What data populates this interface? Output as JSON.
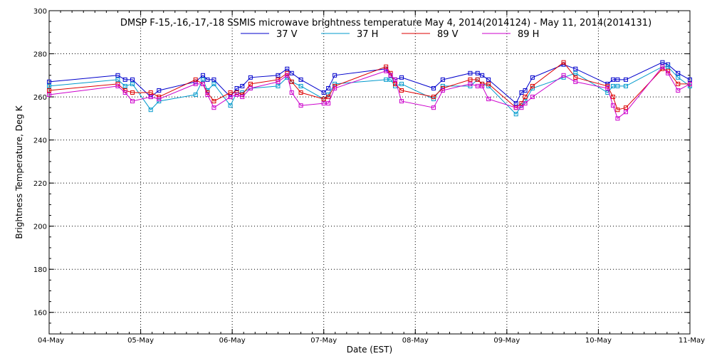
{
  "chart_data": {
    "type": "line",
    "title": "DMSP F-15,-16,-17,-18 SSMIS microwave brightness temperature May  4, 2014(2014124) - May 11, 2014(2014131)",
    "xlabel": "Date (EST)",
    "ylabel": "Brightness Temperature, Deg K",
    "ylim": [
      150,
      300
    ],
    "xlim": [
      0,
      7
    ],
    "y_ticks": [
      160,
      180,
      200,
      220,
      240,
      260,
      280,
      300
    ],
    "x_ticks": [
      {
        "pos": 0,
        "label": "04-May"
      },
      {
        "pos": 1,
        "label": "05-May"
      },
      {
        "pos": 2,
        "label": "06-May"
      },
      {
        "pos": 3,
        "label": "07-May"
      },
      {
        "pos": 4,
        "label": "08-May"
      },
      {
        "pos": 5,
        "label": "09-May"
      },
      {
        "pos": 6,
        "label": "10-May"
      },
      {
        "pos": 7,
        "label": "11-May"
      }
    ],
    "grid": true,
    "legend_position": "top-center",
    "series": [
      {
        "name": "37 V",
        "color": "#0000cc",
        "x": [
          0,
          0.75,
          0.83,
          0.91,
          1.11,
          1.2,
          1.6,
          1.68,
          1.73,
          1.8,
          1.98,
          2.05,
          2.11,
          2.2,
          2.5,
          2.6,
          2.65,
          2.75,
          3.0,
          3.05,
          3.12,
          3.68,
          3.73,
          3.78,
          3.85,
          4.2,
          4.3,
          4.6,
          4.68,
          4.73,
          4.8,
          5.1,
          5.16,
          5.2,
          5.28,
          5.62,
          5.75,
          6.1,
          6.16,
          6.21,
          6.3,
          6.7,
          6.76,
          6.87,
          7.0
        ],
        "y": [
          267,
          270,
          268,
          268,
          260,
          263,
          267,
          270,
          268,
          268,
          260,
          264,
          265,
          269,
          270,
          273,
          271,
          268,
          262,
          264,
          270,
          273,
          270,
          268,
          269,
          264,
          268,
          271,
          271,
          270,
          268,
          257,
          262,
          263,
          269,
          275,
          273,
          266,
          268,
          268,
          268,
          276,
          275,
          271,
          268
        ]
      },
      {
        "name": "37 H",
        "color": "#0099cc",
        "x": [
          0,
          0.75,
          0.83,
          0.91,
          1.11,
          1.2,
          1.6,
          1.68,
          1.73,
          1.8,
          1.98,
          2.05,
          2.11,
          2.2,
          2.5,
          2.6,
          2.65,
          2.75,
          3.0,
          3.05,
          3.12,
          3.68,
          3.73,
          3.78,
          3.85,
          4.2,
          4.3,
          4.6,
          4.68,
          4.73,
          4.8,
          5.1,
          5.16,
          5.2,
          5.28,
          5.62,
          5.75,
          6.1,
          6.16,
          6.21,
          6.3,
          6.7,
          6.76,
          6.87,
          7.0
        ],
        "y": [
          265,
          268,
          265,
          266,
          254,
          258,
          261,
          268,
          263,
          266,
          256,
          262,
          262,
          264,
          265,
          269,
          267,
          265,
          259,
          261,
          266,
          268,
          268,
          265,
          266,
          259,
          265,
          265,
          268,
          266,
          265,
          252,
          256,
          258,
          264,
          269,
          271,
          262,
          265,
          265,
          265,
          274,
          274,
          269,
          265
        ]
      },
      {
        "name": "89 V",
        "color": "#dd0000",
        "x": [
          0,
          0.75,
          0.83,
          0.91,
          1.11,
          1.2,
          1.6,
          1.68,
          1.73,
          1.8,
          1.98,
          2.05,
          2.11,
          2.2,
          2.5,
          2.6,
          2.65,
          2.75,
          3.0,
          3.05,
          3.12,
          3.68,
          3.73,
          3.78,
          3.85,
          4.2,
          4.3,
          4.6,
          4.68,
          4.73,
          4.8,
          5.1,
          5.16,
          5.2,
          5.28,
          5.62,
          5.75,
          6.1,
          6.16,
          6.21,
          6.3,
          6.7,
          6.76,
          6.87,
          7.0
        ],
        "y": [
          263,
          266,
          263,
          262,
          262,
          260,
          268,
          266,
          262,
          258,
          262,
          262,
          261,
          266,
          268,
          271,
          267,
          262,
          259,
          260,
          265,
          274,
          271,
          266,
          263,
          260,
          264,
          268,
          268,
          266,
          266,
          255,
          257,
          260,
          265,
          276,
          269,
          265,
          260,
          254,
          255,
          273,
          272,
          266,
          266
        ]
      },
      {
        "name": "89 H",
        "color": "#cc00cc",
        "x": [
          0,
          0.75,
          0.83,
          0.91,
          1.11,
          1.2,
          1.6,
          1.68,
          1.73,
          1.8,
          1.98,
          2.05,
          2.11,
          2.2,
          2.5,
          2.6,
          2.65,
          2.75,
          3.0,
          3.05,
          3.12,
          3.68,
          3.73,
          3.78,
          3.85,
          4.2,
          4.3,
          4.6,
          4.68,
          4.73,
          4.8,
          5.1,
          5.16,
          5.2,
          5.28,
          5.62,
          5.75,
          6.1,
          6.16,
          6.21,
          6.3,
          6.7,
          6.76,
          6.87,
          7.0
        ],
        "y": [
          261,
          265,
          262,
          258,
          260,
          259,
          266,
          266,
          261,
          255,
          260,
          261,
          260,
          264,
          267,
          270,
          262,
          256,
          257,
          257,
          264,
          272,
          270,
          268,
          258,
          255,
          263,
          266,
          265,
          265,
          259,
          255,
          255,
          257,
          260,
          270,
          267,
          264,
          256,
          250,
          253,
          274,
          271,
          263,
          266
        ]
      }
    ]
  }
}
